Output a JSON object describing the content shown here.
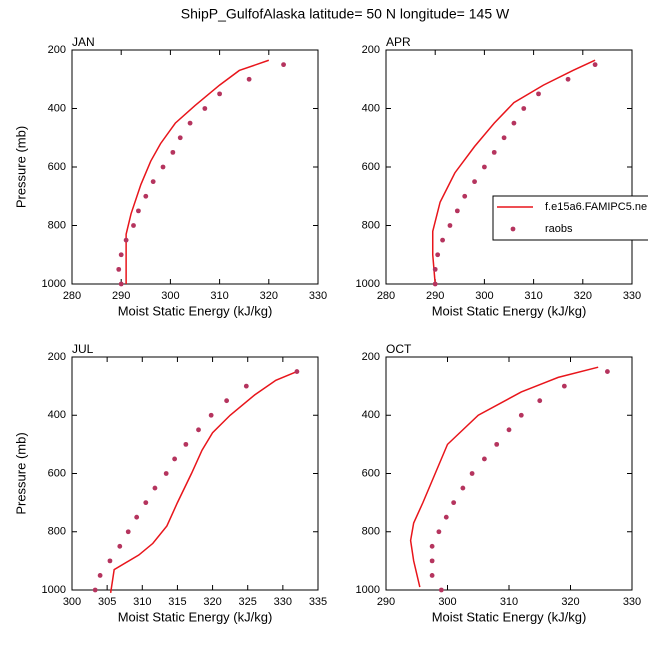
{
  "title": "ShipP_GulfofAlaska  latitude= 50 N longitude= 145 W",
  "chart_data": [
    {
      "type": "line",
      "title": "JAN",
      "xlabel": "Moist Static Energy (kJ/kg)",
      "ylabel": "Pressure (mb)",
      "xlim": [
        280,
        330
      ],
      "xticks": [
        280,
        290,
        300,
        310,
        320,
        330
      ],
      "ylim": [
        1000,
        200
      ],
      "yticks": [
        200,
        400,
        600,
        800,
        1000
      ],
      "series": [
        {
          "name": "f.e15a6.FAMIPC5.ne",
          "style": "line",
          "color": "#e8151b",
          "x": [
            320,
            314,
            310,
            305,
            301,
            298,
            296,
            294,
            292,
            291,
            291,
            291
          ],
          "y": [
            235,
            270,
            320,
            390,
            450,
            520,
            580,
            660,
            760,
            830,
            860,
            1000
          ]
        },
        {
          "name": "raobs",
          "style": "markers",
          "color": "#b5345e",
          "x": [
            323,
            316,
            310,
            307,
            304,
            302,
            300.5,
            298.5,
            296.5,
            295,
            293.5,
            292.5,
            291,
            290,
            289.5,
            290
          ],
          "y": [
            250,
            300,
            350,
            400,
            450,
            500,
            550,
            600,
            650,
            700,
            750,
            800,
            850,
            900,
            950,
            1000
          ]
        }
      ]
    },
    {
      "type": "line",
      "title": "APR",
      "xlabel": "Moist Static Energy (kJ/kg)",
      "legend": true,
      "xlim": [
        280,
        330
      ],
      "xticks": [
        280,
        290,
        300,
        310,
        320,
        330
      ],
      "ylim": [
        1000,
        200
      ],
      "yticks": [
        200,
        400,
        600,
        800,
        1000
      ],
      "series": [
        {
          "name": "f.e15a6.FAMIPC5.ne",
          "style": "line",
          "color": "#e8151b",
          "x": [
            322.5,
            318,
            312,
            306,
            302,
            298,
            294,
            291,
            289.5,
            289.5,
            290
          ],
          "y": [
            235,
            270,
            320,
            380,
            450,
            530,
            620,
            720,
            820,
            900,
            1000
          ]
        },
        {
          "name": "raobs",
          "style": "markers",
          "color": "#b5345e",
          "x": [
            322.5,
            317,
            311,
            308,
            306,
            304,
            302,
            300,
            298,
            296,
            294.5,
            293,
            291.5,
            290.5,
            290,
            290
          ],
          "y": [
            250,
            300,
            350,
            400,
            450,
            500,
            550,
            600,
            650,
            700,
            750,
            800,
            850,
            900,
            950,
            1000
          ]
        }
      ]
    },
    {
      "type": "line",
      "title": "JUL",
      "xlabel": "Moist Static Energy (kJ/kg)",
      "ylabel": "Pressure (mb)",
      "xlim": [
        300,
        335
      ],
      "xticks": [
        300,
        305,
        310,
        315,
        320,
        325,
        330,
        335
      ],
      "ylim": [
        1000,
        200
      ],
      "yticks": [
        200,
        400,
        600,
        800,
        1000
      ],
      "series": [
        {
          "name": "f.e15a6.FAMIPC5.ne",
          "style": "line",
          "color": "#e8151b",
          "x": [
            332,
            329,
            326,
            322.5,
            320,
            318.5,
            317,
            315,
            313.5,
            311.5,
            309.5,
            306,
            305.5
          ],
          "y": [
            250,
            280,
            330,
            400,
            460,
            520,
            600,
            700,
            780,
            840,
            880,
            930,
            1010
          ]
        },
        {
          "name": "raobs",
          "style": "markers",
          "color": "#b5345e",
          "x": [
            332,
            324.8,
            322,
            319.8,
            318,
            316.2,
            314.6,
            313.4,
            311.8,
            310.5,
            309.2,
            308,
            306.8,
            305.4,
            304,
            303.3
          ],
          "y": [
            250,
            300,
            350,
            400,
            450,
            500,
            550,
            600,
            650,
            700,
            750,
            800,
            850,
            900,
            950,
            1000
          ]
        }
      ]
    },
    {
      "type": "line",
      "title": "OCT",
      "xlabel": "Moist Static Energy (kJ/kg)",
      "xlim": [
        290,
        330
      ],
      "xticks": [
        290,
        300,
        310,
        320,
        330
      ],
      "ylim": [
        1000,
        200
      ],
      "yticks": [
        200,
        400,
        600,
        800,
        1000
      ],
      "series": [
        {
          "name": "f.e15a6.FAMIPC5.ne",
          "style": "line",
          "color": "#e8151b",
          "x": [
            324.5,
            318,
            312,
            305,
            300,
            298,
            296,
            294.5,
            294,
            294.5,
            295.5
          ],
          "y": [
            235,
            270,
            320,
            400,
            500,
            600,
            700,
            770,
            830,
            900,
            990
          ]
        },
        {
          "name": "raobs",
          "style": "markers",
          "color": "#b5345e",
          "x": [
            326,
            319,
            315,
            312,
            310,
            308,
            306,
            304,
            302.5,
            301,
            299.8,
            298.6,
            297.5,
            297.5,
            297.5,
            299
          ],
          "y": [
            250,
            300,
            350,
            400,
            450,
            500,
            550,
            600,
            650,
            700,
            750,
            800,
            850,
            900,
            950,
            1000
          ]
        }
      ]
    }
  ]
}
